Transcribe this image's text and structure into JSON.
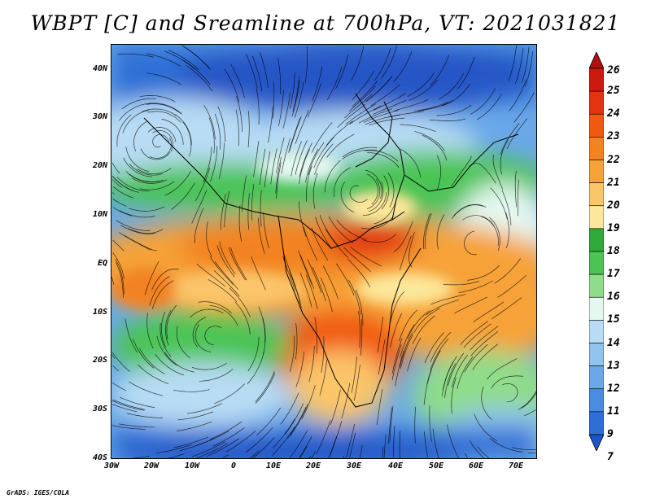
{
  "title": "WBPT [C] and Sreamline at 700hPa, VT: 2021031821",
  "lat_labels": [
    "40N",
    "30N",
    "20N",
    "10N",
    "EQ",
    "10S",
    "20S",
    "30S",
    "40S"
  ],
  "lon_labels": [
    "30W",
    "20W",
    "10W",
    "0",
    "10E",
    "20E",
    "30E",
    "40E",
    "50E",
    "60E",
    "70E"
  ],
  "colorbar": {
    "labels": [
      "26",
      "25",
      "24",
      "23",
      "22",
      "21",
      "20",
      "19",
      "18",
      "17",
      "16",
      "15",
      "14",
      "13",
      "12",
      "11",
      "9",
      "7"
    ],
    "colors": [
      "#b01010",
      "#cc1a10",
      "#e23410",
      "#f05a10",
      "#f38220",
      "#f6a238",
      "#fbc56a",
      "#fde79a",
      "#2faa3a",
      "#4cc454",
      "#8fdc8a",
      "#e4f8f0",
      "#b8dcf4",
      "#90c4ee",
      "#6aa8e8",
      "#4a8ce0",
      "#2e6fd6",
      "#1a56c8"
    ]
  },
  "footer": "GrADS: IGES/COLA"
}
